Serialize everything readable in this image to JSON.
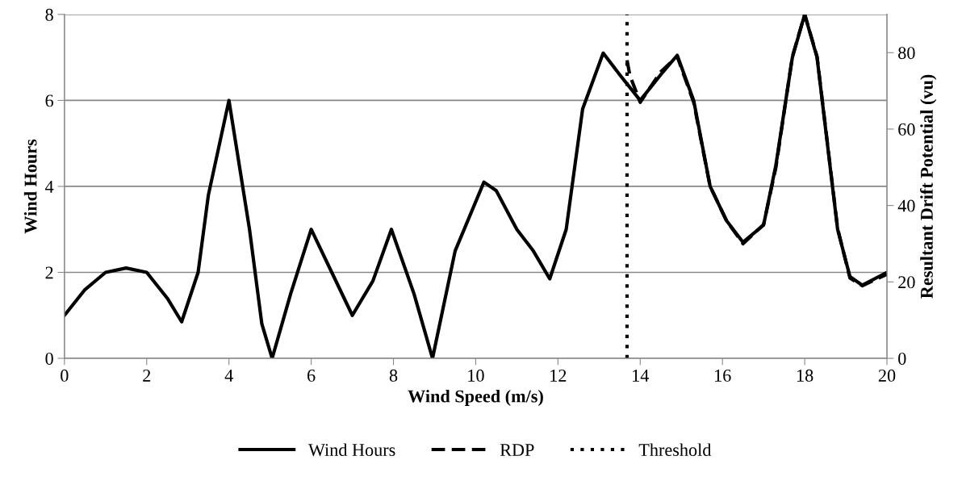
{
  "chart_data": {
    "type": "line",
    "xlabel": "Wind Speed (m/s)",
    "ylabel": "Wind Hours",
    "y2label": "Resultant Drift Potential (vu)",
    "x": [
      0,
      0.5,
      1,
      1.5,
      2,
      2.5,
      2.85,
      3.25,
      3.5,
      4,
      4.5,
      4.8,
      5.05,
      5.5,
      6,
      6.5,
      7,
      7.5,
      7.95,
      8.5,
      8.95,
      9.5,
      10.2,
      10.5,
      11,
      11.4,
      11.8,
      12.2,
      12.6,
      13.1,
      13.5,
      14,
      14.5,
      14.9,
      15.3,
      15.7,
      16.1,
      16.5,
      17,
      17.3,
      17.7,
      18,
      18.3,
      18.8,
      19.1,
      19.4,
      20
    ],
    "series": [
      {
        "name": "Wind Hours",
        "color": "#000000",
        "line_style": "solid",
        "values": [
          1,
          1.6,
          2,
          2.1,
          2,
          1.4,
          0.85,
          2,
          3.8,
          6,
          3,
          0.8,
          0,
          1.5,
          3,
          2,
          1,
          1.8,
          3,
          1.5,
          0,
          2.5,
          4.1,
          3.9,
          3,
          2.5,
          1.85,
          3,
          5.8,
          7.1,
          6.6,
          6,
          6.6,
          7.05,
          6,
          4,
          3.2,
          2.7,
          3.1,
          4.5,
          7,
          8,
          7,
          3,
          1.9,
          1.7,
          2
        ]
      },
      {
        "name": "RDP",
        "color": "#000000",
        "line_style": "dashed",
        "axis": "y2",
        "x": [
          13.68,
          13.75,
          14,
          14.5,
          14.9,
          15.3,
          15.7,
          16.1,
          16.5,
          17,
          17.3,
          17.7,
          18,
          18.3,
          18.8,
          19.1,
          19.4,
          20
        ],
        "values": [
          78,
          74,
          67,
          75,
          79,
          67,
          45,
          36,
          30,
          35,
          50,
          79,
          90,
          79,
          34,
          21,
          19,
          22
        ]
      }
    ],
    "ref_lines": [
      {
        "axis": "x",
        "value": 13.68,
        "label": "Threshold",
        "color": "#000000",
        "line_style": "dotted"
      }
    ],
    "xlim": [
      0,
      20
    ],
    "xticks": [
      0,
      2,
      4,
      6,
      8,
      10,
      12,
      14,
      16,
      18,
      20
    ],
    "ylim": [
      0,
      8
    ],
    "yticks": [
      0,
      2,
      4,
      6,
      8
    ],
    "y2lim": [
      0,
      90
    ],
    "y2ticks": [
      0,
      20,
      40,
      60,
      80
    ],
    "grid": "y",
    "legend": "bottom",
    "marker": "none"
  }
}
